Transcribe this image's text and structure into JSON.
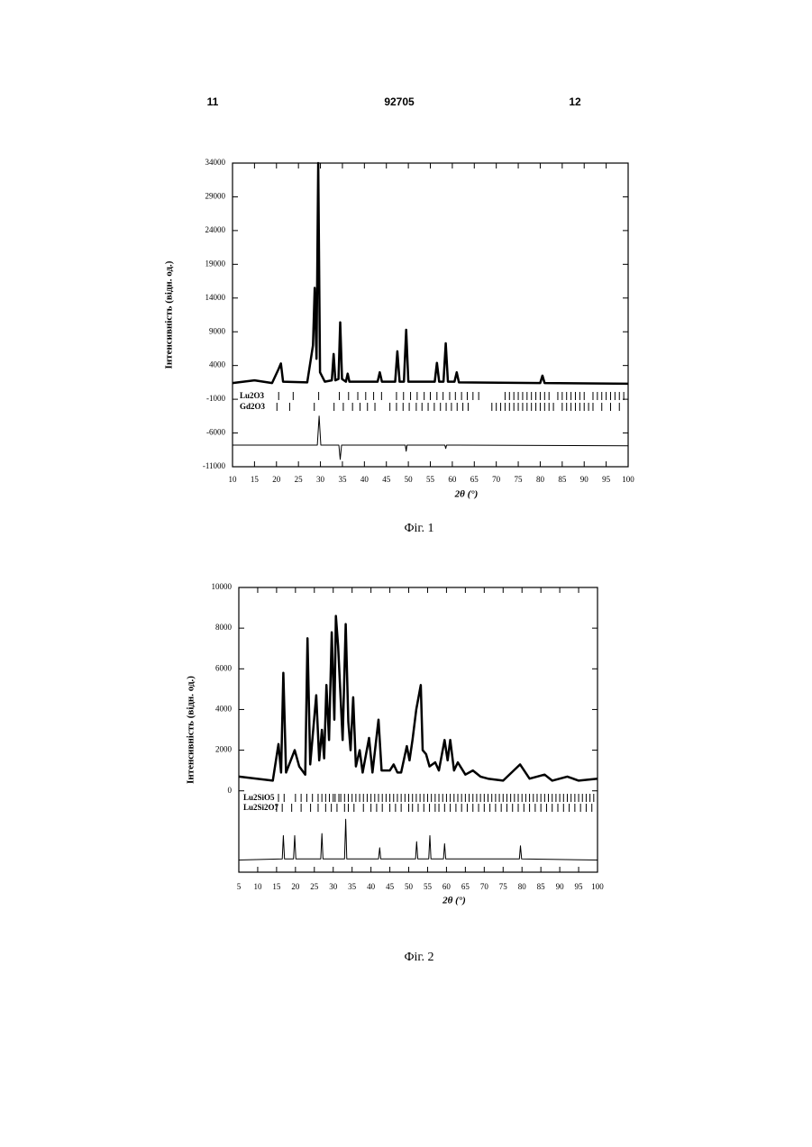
{
  "header": {
    "left": "11",
    "center": "92705",
    "right": "12"
  },
  "chart_data": [
    {
      "type": "line",
      "caption": "Фіг. 1",
      "x_label": "2θ (°)",
      "y_label": "Інтенсивність (відн. од.)",
      "xlim": [
        10,
        100
      ],
      "ylim": [
        -11000,
        34000
      ],
      "xticks": [
        10,
        15,
        20,
        25,
        30,
        35,
        40,
        45,
        50,
        55,
        60,
        65,
        70,
        75,
        80,
        85,
        90,
        95,
        100
      ],
      "yticks": [
        -11000,
        -6000,
        -1000,
        4000,
        9000,
        14000,
        19000,
        24000,
        29000,
        34000
      ],
      "series": [
        {
          "color": "#000000",
          "width": 2.5,
          "x": [
            10,
            15,
            19,
            20.5,
            21,
            21.5,
            27,
            28.3,
            28.7,
            29.1,
            29.5,
            29.9,
            31,
            32.6,
            33,
            33.4,
            34.1,
            34.5,
            34.9,
            35.8,
            36.2,
            36.6,
            43,
            43.5,
            44,
            47,
            47.5,
            48,
            49,
            49.5,
            50,
            56,
            56.5,
            57,
            58,
            58.5,
            59,
            60.5,
            61,
            61.5,
            80,
            80.5,
            81,
            100
          ],
          "values": [
            1400,
            1800,
            1400,
            3500,
            4300,
            1600,
            1500,
            7000,
            15500,
            5000,
            34000,
            3000,
            1600,
            1800,
            5700,
            1800,
            2000,
            10400,
            2000,
            1600,
            2800,
            1600,
            1600,
            3000,
            1600,
            1600,
            6100,
            1600,
            1600,
            9300,
            1600,
            1600,
            4400,
            1600,
            1600,
            7300,
            1600,
            1600,
            3000,
            1500,
            1400,
            2500,
            1400,
            1300
          ]
        },
        {
          "color": "#000000",
          "width": 1,
          "x": [
            10,
            29.3,
            29.7,
            30.1,
            34.2,
            34.5,
            34.8,
            49.3,
            49.5,
            49.7,
            58.3,
            58.5,
            58.7,
            100
          ],
          "values": [
            -7800,
            -7800,
            -3500,
            -7800,
            -7800,
            -9900,
            -7800,
            -7800,
            -8700,
            -7800,
            -7800,
            -8300,
            -7800,
            -7900
          ]
        }
      ],
      "reflections": [
        {
          "name": "Lu2O3",
          "positions": [
            20.5,
            23.8,
            29.6,
            34.3,
            36.4,
            38.5,
            40.3,
            42.1,
            43.9,
            47.3,
            48.9,
            50.5,
            52.0,
            53.6,
            55.0,
            56.5,
            57.9,
            59.4,
            60.7,
            62.1,
            63.4,
            64.7,
            66.0,
            72,
            73,
            74,
            75,
            76,
            77,
            78,
            79,
            80,
            81,
            82,
            84,
            85,
            86,
            87,
            88,
            89,
            90,
            92,
            93,
            94,
            95,
            96,
            97,
            98,
            99
          ]
        },
        {
          "name": "Gd2O3",
          "positions": [
            20.1,
            23.0,
            28.6,
            33.1,
            35.2,
            37.3,
            39.0,
            40.7,
            42.4,
            45.8,
            47.3,
            48.8,
            50.2,
            51.8,
            53.1,
            54.5,
            55.9,
            57.3,
            58.6,
            59.8,
            61.1,
            62.4,
            63.6,
            69,
            70,
            71,
            72,
            73,
            74,
            75,
            76,
            77,
            78,
            79,
            80,
            81,
            82,
            83,
            85,
            86,
            87,
            88,
            89,
            90,
            91,
            92,
            94,
            96,
            98
          ]
        }
      ]
    },
    {
      "type": "line",
      "caption": "Фіг. 2",
      "x_label": "2θ (°)",
      "y_label": "Інтенсивність (відн. од.)",
      "xlim": [
        5,
        100
      ],
      "ylim": [
        -4000,
        10000
      ],
      "xticks": [
        5,
        10,
        15,
        20,
        25,
        30,
        35,
        40,
        45,
        50,
        55,
        60,
        65,
        70,
        75,
        80,
        85,
        90,
        95,
        100
      ],
      "yticks": [
        0,
        2000,
        4000,
        6000,
        8000,
        10000
      ],
      "series": [
        {
          "color": "#000000",
          "width": 2.5,
          "x": [
            5,
            14,
            15.5,
            16.2,
            16.8,
            17.5,
            19.8,
            21,
            22.6,
            23.2,
            23.9,
            25.5,
            26.3,
            27,
            27.6,
            28.2,
            28.9,
            29.6,
            30.3,
            30.7,
            31.3,
            32.5,
            33.3,
            34,
            34.6,
            35.3,
            36,
            37,
            37.8,
            39.5,
            40.4,
            42,
            42.8,
            45,
            46,
            47,
            48,
            49.5,
            50.2,
            51,
            52,
            53.2,
            53.7,
            54.6,
            55.5,
            57,
            58,
            59.5,
            60.3,
            61,
            62,
            63,
            65,
            67,
            69,
            71,
            75,
            79.5,
            82,
            86,
            88,
            92,
            95,
            100
          ],
          "values": [
            700,
            500,
            2300,
            900,
            5800,
            900,
            2000,
            1200,
            800,
            7500,
            1300,
            4700,
            1500,
            3000,
            1600,
            5200,
            2500,
            7800,
            3500,
            8600,
            7100,
            2500,
            8200,
            3400,
            2000,
            4600,
            1200,
            2000,
            900,
            2600,
            900,
            3500,
            1000,
            1000,
            1300,
            900,
            900,
            2200,
            1500,
            2500,
            4000,
            5200,
            2000,
            1800,
            1200,
            1400,
            1000,
            2500,
            1500,
            2500,
            1000,
            1400,
            800,
            1000,
            700,
            600,
            500,
            1300,
            600,
            800,
            500,
            700,
            500,
            600
          ]
        },
        {
          "color": "#000000",
          "width": 1,
          "x": [
            5,
            16.5,
            16.8,
            17.1,
            19.5,
            19.8,
            20.1,
            26.7,
            27,
            27.3,
            33,
            33.3,
            33.6,
            42,
            42.3,
            42.6,
            51.8,
            52.1,
            52.4,
            55.3,
            55.6,
            55.9,
            59.2,
            59.5,
            59.8,
            79.3,
            79.6,
            79.9,
            100
          ],
          "values": [
            -3400,
            -3350,
            -2200,
            -3350,
            -3350,
            -2200,
            -3350,
            -3350,
            -2100,
            -3350,
            -3350,
            -1400,
            -3350,
            -3350,
            -2800,
            -3350,
            -3350,
            -2500,
            -3350,
            -3350,
            -2200,
            -3350,
            -3350,
            -2600,
            -3350,
            -3350,
            -2700,
            -3350,
            -3400
          ]
        }
      ],
      "reflections": [
        {
          "name": "Lu2SiO5",
          "positions": [
            15.5,
            17,
            20,
            21.5,
            23,
            24.5,
            26,
            27,
            28,
            29,
            30,
            30.5,
            31.5,
            32,
            33,
            34,
            35,
            36,
            37,
            38,
            39,
            40,
            41,
            42,
            43,
            44,
            45,
            46,
            47,
            48,
            49,
            50,
            51,
            52,
            53,
            54,
            55,
            56,
            57,
            58,
            59,
            60,
            61,
            62,
            63,
            64,
            65,
            66,
            67,
            68,
            69,
            70,
            71,
            72,
            73,
            74,
            75,
            76,
            77,
            78,
            79,
            80,
            81,
            82,
            83,
            84,
            85,
            86,
            87,
            88,
            89,
            90,
            91,
            92,
            93,
            94,
            95,
            96,
            97,
            98,
            99
          ]
        },
        {
          "name": "Lu2Si2O7",
          "positions": [
            15,
            16.5,
            19,
            21.5,
            24,
            26,
            28,
            29.5,
            31,
            33,
            34,
            35.5,
            38,
            40,
            41.5,
            43,
            45,
            46.5,
            48,
            50,
            51,
            52.5,
            54,
            55.5,
            57,
            58,
            59.5,
            61,
            62.5,
            64,
            65.5,
            67,
            68.5,
            70,
            71.5,
            73,
            74.5,
            76,
            77.5,
            79,
            80.5,
            82,
            83.5,
            85,
            86.5,
            88,
            89.5,
            91,
            92.5,
            94,
            95.5,
            97,
            98.5
          ]
        }
      ]
    }
  ]
}
